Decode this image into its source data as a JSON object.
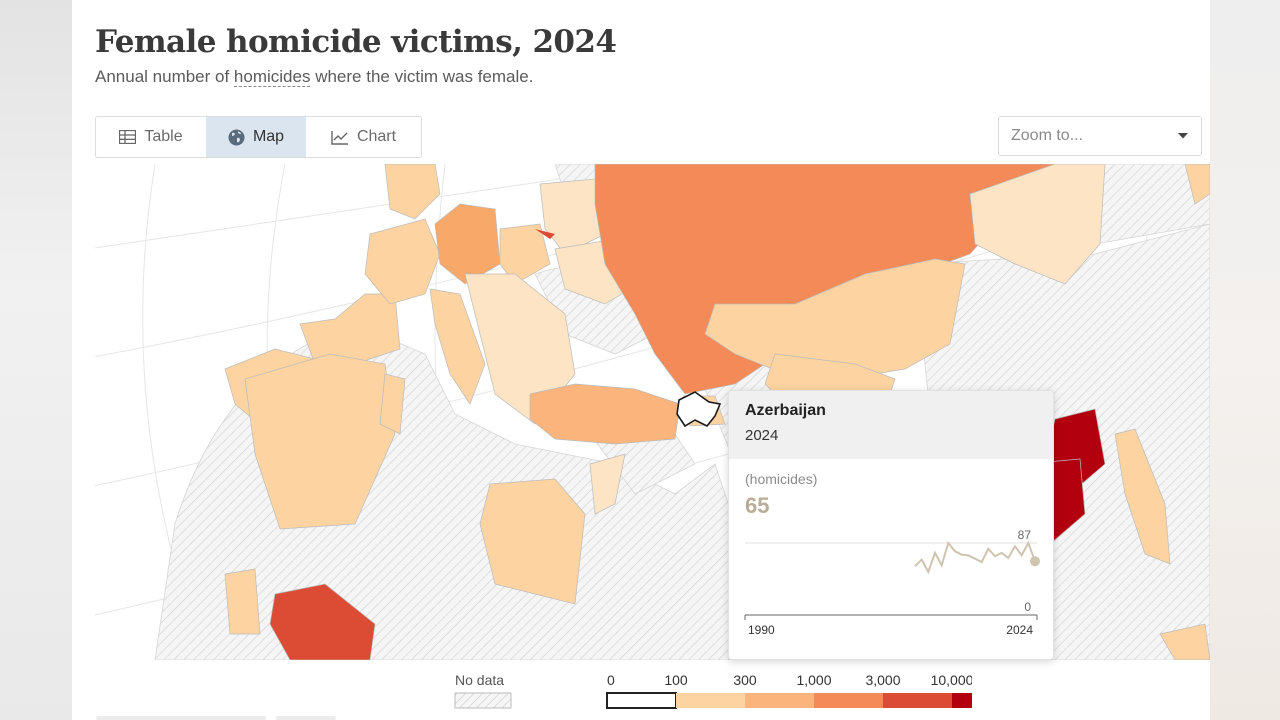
{
  "header": {
    "title": "Female homicide victims, 2024",
    "subtitle_before": "Annual number of ",
    "subtitle_link": "homicides",
    "subtitle_after": " where the victim was female."
  },
  "tabs": [
    {
      "label": "Table",
      "icon": "table-icon",
      "selected": false
    },
    {
      "label": "Map",
      "icon": "globe-icon",
      "selected": true
    },
    {
      "label": "Chart",
      "icon": "line-chart-icon",
      "selected": false
    }
  ],
  "zoom": {
    "placeholder": "Zoom to..."
  },
  "tooltip": {
    "country": "Azerbaijan",
    "year": "2024",
    "unit": "(homicides)",
    "value": "65",
    "spark_max": "87",
    "spark_min": "0",
    "spark_start": "1990",
    "spark_end": "2024",
    "spark_series": [
      59,
      67,
      52,
      75,
      60,
      87,
      77,
      73,
      72,
      68,
      64,
      80,
      71,
      75,
      69,
      83,
      72,
      87,
      65
    ]
  },
  "legend": {
    "no_data_label": "No data",
    "ticks": [
      "0",
      "100",
      "300",
      "1,000",
      "3,000",
      "10,000"
    ],
    "colors": [
      "#ffffff",
      "#fcd3a1",
      "#fbb57c",
      "#f48a57",
      "#dc4b33",
      "#b3000f"
    ]
  },
  "colors": {
    "accent_selected_tab": "#dbe5f0",
    "tooltip_value": "#b9ad98"
  }
}
